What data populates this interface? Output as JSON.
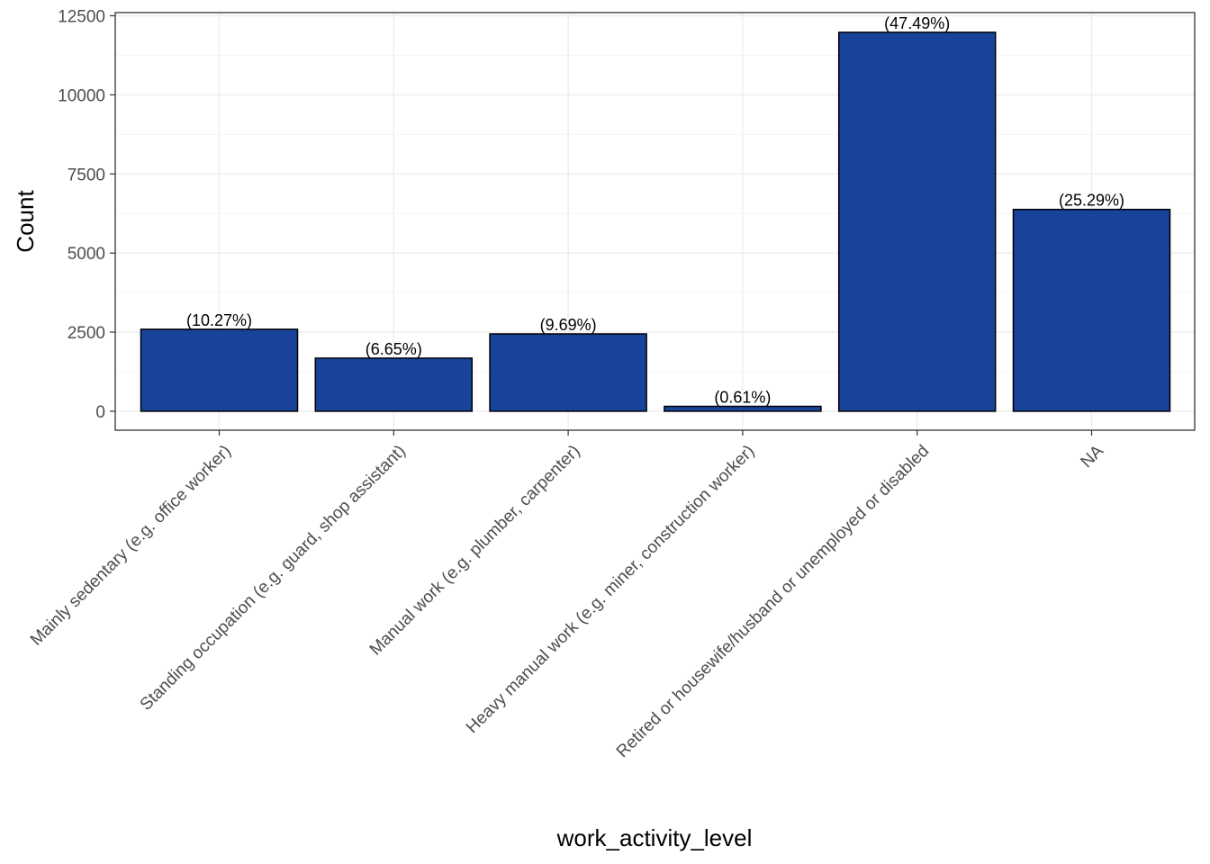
{
  "chart_data": {
    "type": "bar",
    "categories": [
      "Mainly sedentary (e.g. office worker)",
      "Standing occupation (e.g. guard, shop assistant)",
      "Manual work (e.g. plumber, carpenter)",
      "Heavy manual work (e.g. miner, construction worker)",
      "Retired or housewife/husband or unemployed or disabled",
      "NA"
    ],
    "values": [
      2590,
      1677,
      2444,
      154,
      11977,
      6378
    ],
    "data_labels": [
      "(10.27%)",
      "(6.65%)",
      "(9.69%)",
      "(0.61%)",
      "(47.49%)",
      "(25.29%)"
    ],
    "xlabel": "work_activity_level",
    "ylabel": "Count",
    "ylim": [
      -600,
      12600
    ],
    "yticks": [
      0,
      2500,
      5000,
      7500,
      10000,
      12500
    ],
    "ytick_labels": [
      "0",
      "2500",
      "5000",
      "7500",
      "10000",
      "12500"
    ],
    "grid": true,
    "legend": "none",
    "colors": {
      "bar_fill": "#19439A",
      "bar_stroke": "#000000",
      "grid_major": "#EBEBEB",
      "grid_minor": "#F5F5F5",
      "panel_border": "#333333"
    }
  }
}
